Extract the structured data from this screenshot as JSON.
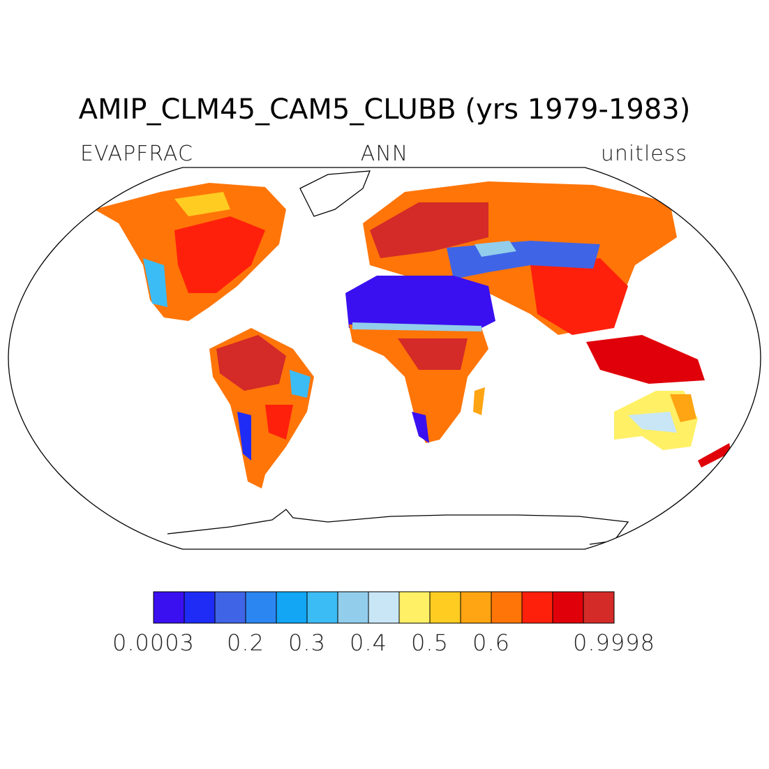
{
  "title": "AMIP_CLM45_CAM5_CLUBB (yrs 1979-1983)",
  "left_label": "EVAPFRAC",
  "center_label": "ANN",
  "right_label": "unitless",
  "colorbar": {
    "colors": [
      "#3a10f0",
      "#1e2cf5",
      "#3f64e6",
      "#2b86f2",
      "#12a6f5",
      "#3cbcf4",
      "#92cdec",
      "#c8e6f6",
      "#fff066",
      "#ffcc22",
      "#ffa412",
      "#ff7508",
      "#ff200c",
      "#e0000a",
      "#d42a28"
    ],
    "labels": [
      0.0003,
      null,
      null,
      0.2,
      null,
      0.3,
      null,
      0.4,
      null,
      0.5,
      null,
      0.6,
      null,
      null,
      null,
      0.9998
    ]
  }
}
